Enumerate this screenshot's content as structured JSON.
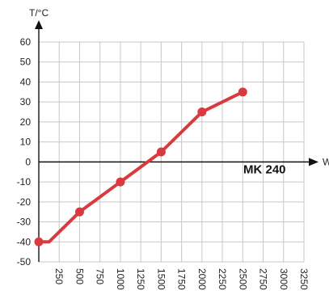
{
  "chart_data": {
    "type": "line",
    "annotation": "MK 240",
    "xlabel": "W",
    "ylabel": "T/°C",
    "xlim": [
      0,
      3250
    ],
    "ylim": [
      -50,
      60
    ],
    "x_ticks": [
      250,
      500,
      750,
      1000,
      1250,
      1500,
      1750,
      2000,
      2250,
      2500,
      2750,
      3000,
      3250
    ],
    "x_tick_labels": [
      "250",
      "500",
      "750",
      "1000",
      "1250",
      "1500",
      "1750",
      "2000",
      "2250",
      "2500",
      "2750",
      "3000",
      "3250"
    ],
    "y_ticks": [
      60,
      50,
      40,
      30,
      20,
      10,
      0,
      -10,
      -20,
      -30,
      -40,
      -50
    ],
    "y_tick_labels": [
      "60",
      "50",
      "40",
      "30",
      "20",
      "10",
      "0",
      "-10",
      "-20",
      "-30",
      "-40",
      "-50"
    ],
    "grid": true,
    "series": [
      {
        "x": [
          0,
          125,
          500,
          1000,
          1500,
          2000,
          2500
        ],
        "y": [
          -40,
          -40,
          -25,
          -10,
          5,
          25,
          35
        ],
        "markers": [
          true,
          false,
          true,
          true,
          true,
          true,
          true
        ]
      }
    ],
    "colors": {
      "line": "#d93a3f",
      "grid": "#c8c8c8",
      "axis": "#111111"
    }
  }
}
